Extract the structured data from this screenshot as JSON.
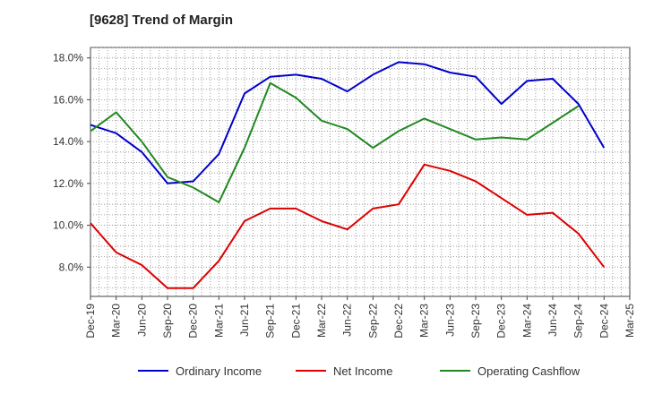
{
  "chart_data": {
    "type": "line",
    "title": "[9628]  Trend of Margin",
    "xlabel": "",
    "ylabel": "",
    "x_ticks": [
      "Dec-19",
      "Mar-20",
      "Jun-20",
      "Sep-20",
      "Dec-20",
      "Mar-21",
      "Jun-21",
      "Sep-21",
      "Dec-21",
      "Mar-22",
      "Jun-22",
      "Sep-22",
      "Dec-22",
      "Mar-23",
      "Jun-23",
      "Sep-23",
      "Dec-23",
      "Mar-24",
      "Jun-24",
      "Sep-24",
      "Dec-24",
      "Mar-25"
    ],
    "y_ticks": [
      "8.0%",
      "10.0%",
      "12.0%",
      "14.0%",
      "16.0%",
      "18.0%"
    ],
    "ylim": [
      6.6,
      18.5
    ],
    "grid": true,
    "legend_position": "bottom",
    "series": [
      {
        "name": "Ordinary Income",
        "color": "#0000cc",
        "values": [
          14.8,
          14.4,
          13.5,
          12.0,
          12.1,
          13.4,
          16.3,
          17.1,
          17.2,
          17.0,
          16.4,
          17.2,
          17.8,
          17.7,
          17.3,
          17.1,
          15.8,
          16.9,
          17.0,
          15.8,
          13.7,
          null
        ]
      },
      {
        "name": "Net Income",
        "color": "#dd0000",
        "values": [
          10.1,
          8.7,
          8.1,
          7.0,
          7.0,
          8.3,
          10.2,
          10.8,
          10.8,
          10.2,
          9.8,
          10.8,
          11.0,
          12.9,
          12.6,
          12.1,
          11.3,
          10.5,
          10.6,
          9.6,
          8.0,
          null
        ]
      },
      {
        "name": "Operating Cashflow",
        "color": "#228822",
        "values": [
          14.5,
          15.4,
          14.0,
          12.3,
          11.8,
          11.1,
          13.7,
          16.8,
          16.1,
          15.0,
          14.6,
          13.7,
          14.5,
          15.1,
          14.6,
          14.1,
          14.2,
          14.1,
          14.9,
          15.7,
          null,
          null
        ]
      }
    ]
  }
}
